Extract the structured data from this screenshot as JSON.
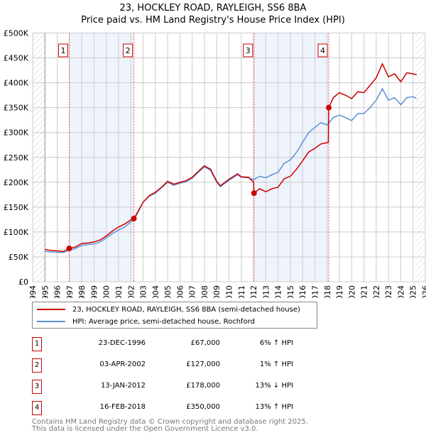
{
  "chart_data": {
    "type": "line",
    "title": "23, HOCKLEY ROAD, RAYLEIGH, SS6 8BA",
    "subtitle": "Price paid vs. HM Land Registry's House Price Index (HPI)",
    "xlim": [
      1994,
      2026
    ],
    "ylim": [
      0,
      500000
    ],
    "x_ticks": [
      "1994",
      "1995",
      "1996",
      "1997",
      "1998",
      "1999",
      "2000",
      "2001",
      "2002",
      "2003",
      "2004",
      "2005",
      "2006",
      "2007",
      "2008",
      "2009",
      "2010",
      "2011",
      "2012",
      "2013",
      "2014",
      "2015",
      "2016",
      "2017",
      "2018",
      "2019",
      "2020",
      "2021",
      "2022",
      "2023",
      "2024",
      "2025",
      "2026"
    ],
    "y_ticks": [
      {
        "v": 0,
        "label": "£0"
      },
      {
        "v": 50000,
        "label": "£50K"
      },
      {
        "v": 100000,
        "label": "£100K"
      },
      {
        "v": 150000,
        "label": "£150K"
      },
      {
        "v": 200000,
        "label": "£200K"
      },
      {
        "v": 250000,
        "label": "£250K"
      },
      {
        "v": 300000,
        "label": "£300K"
      },
      {
        "v": 350000,
        "label": "£350K"
      },
      {
        "v": 400000,
        "label": "£400K"
      },
      {
        "v": 450000,
        "label": "£450K"
      },
      {
        "v": 500000,
        "label": "£500K"
      }
    ],
    "grid": true,
    "series": [
      {
        "name": "23, HOCKLEY ROAD, RAYLEIGH, SS6 8BA (semi-detached house)",
        "color": "#cc0000",
        "x": [
          1995,
          1995.5,
          1996,
          1996.5,
          1996.98,
          1997.5,
          1998,
          1998.5,
          1999,
          1999.5,
          2000,
          2000.5,
          2001,
          2001.5,
          2002,
          2002.25,
          2002.6,
          2003,
          2003.5,
          2004,
          2004.5,
          2005,
          2005.5,
          2006,
          2006.5,
          2007,
          2007.5,
          2008,
          2008.5,
          2009,
          2009.3,
          2010,
          2010.7,
          2011,
          2011.6,
          2012.0,
          2012.04,
          2012.5,
          2013,
          2013.5,
          2014,
          2014.5,
          2015,
          2015.5,
          2016,
          2016.5,
          2017,
          2017.5,
          2018.1,
          2018.13,
          2018.5,
          2019,
          2019.5,
          2020,
          2020.5,
          2021,
          2021.5,
          2022,
          2022.5,
          2023,
          2023.5,
          2024,
          2024.5,
          2025,
          2025.3
        ],
        "y": [
          65000,
          63000,
          62000,
          61000,
          67000,
          70000,
          77000,
          78000,
          80000,
          84000,
          92000,
          102000,
          110000,
          116000,
          124000,
          127000,
          142000,
          160000,
          173000,
          180000,
          190000,
          202000,
          196000,
          200000,
          203000,
          210000,
          222000,
          233000,
          226000,
          202000,
          193000,
          206000,
          217000,
          211000,
          210000,
          200000,
          178000,
          187000,
          181000,
          187000,
          190000,
          207000,
          212000,
          226000,
          243000,
          261000,
          268000,
          277000,
          280000,
          350000,
          370000,
          380000,
          375000,
          368000,
          382000,
          380000,
          395000,
          410000,
          438000,
          412000,
          418000,
          402000,
          420000,
          418000,
          416000
        ]
      },
      {
        "name": "HPI: Average price, semi-detached house, Rochford",
        "color": "#5b8fd4",
        "x": [
          1995,
          1995.5,
          1996,
          1996.5,
          1997,
          1997.5,
          1998,
          1998.5,
          1999,
          1999.5,
          2000,
          2000.5,
          2001,
          2001.5,
          2002,
          2002.25,
          2002.6,
          2003,
          2003.5,
          2004,
          2004.5,
          2005,
          2005.5,
          2006,
          2006.5,
          2007,
          2007.5,
          2008,
          2008.5,
          2009,
          2009.3,
          2010,
          2010.7,
          2011,
          2011.6,
          2012,
          2012.5,
          2013,
          2013.5,
          2014,
          2014.5,
          2015,
          2015.5,
          2016,
          2016.5,
          2017,
          2017.5,
          2018,
          2018.5,
          2019,
          2019.5,
          2020,
          2020.5,
          2021,
          2021.5,
          2022,
          2022.5,
          2023,
          2023.5,
          2024,
          2024.5,
          2025,
          2025.3
        ],
        "y": [
          61000,
          60000,
          59000,
          59000,
          63000,
          67000,
          73000,
          75000,
          76000,
          80000,
          88000,
          97000,
          104000,
          110000,
          120000,
          125000,
          140000,
          160000,
          172000,
          178000,
          189000,
          200000,
          194000,
          198000,
          201000,
          208000,
          220000,
          231000,
          224000,
          200000,
          191000,
          204000,
          215000,
          210000,
          209000,
          205000,
          212000,
          209000,
          215000,
          220000,
          238000,
          245000,
          260000,
          280000,
          300000,
          310000,
          320000,
          315000,
          330000,
          335000,
          330000,
          324000,
          338000,
          338000,
          350000,
          365000,
          388000,
          365000,
          370000,
          356000,
          370000,
          372000,
          368000
        ]
      }
    ],
    "sales": [
      {
        "num": "1",
        "x": 1996.98,
        "price": 67000,
        "date": "23-DEC-1996",
        "price_label": "£67,000",
        "hpi_label": "6% ↑ HPI"
      },
      {
        "num": "2",
        "x": 2002.25,
        "price": 127000,
        "date": "03-APR-2002",
        "price_label": "£127,000",
        "hpi_label": "1% ↑ HPI"
      },
      {
        "num": "3",
        "x": 2012.04,
        "price": 178000,
        "date": "13-JAN-2012",
        "price_label": "£178,000",
        "hpi_label": "13% ↓ HPI"
      },
      {
        "num": "4",
        "x": 2018.13,
        "price": 350000,
        "date": "16-FEB-2018",
        "price_label": "£350,000",
        "hpi_label": "13% ↑ HPI"
      }
    ],
    "shaded_ranges": [
      [
        1996.98,
        2002.25
      ],
      [
        2012.04,
        2018.13
      ]
    ],
    "hatched_ranges": [
      [
        1994,
        1995
      ],
      [
        2025.2,
        2026
      ]
    ]
  },
  "legend": {
    "red": "23, HOCKLEY ROAD, RAYLEIGH, SS6 8BA (semi-detached house)",
    "blue": "HPI: Average price, semi-detached house, Rochford"
  },
  "footer": {
    "line1": "Contains HM Land Registry data © Crown copyright and database right 2025.",
    "line2": "This data is licensed under the Open Government Licence v3.0."
  }
}
